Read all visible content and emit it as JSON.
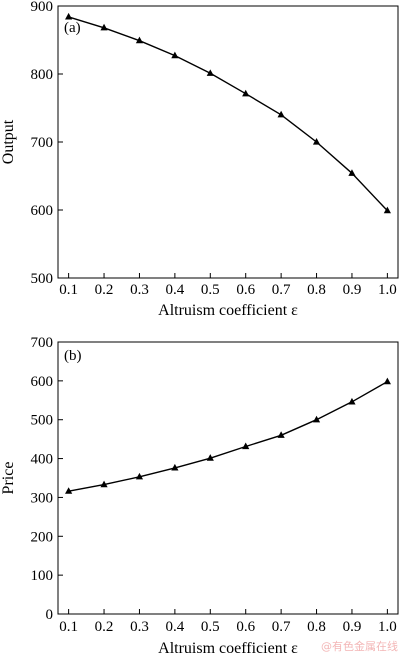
{
  "watermark": "@有色金属在线",
  "chart_data": [
    {
      "type": "line",
      "label": "(a)",
      "xlabel": "Altruism coefficient ε",
      "ylabel": "Output",
      "xlim": [
        0.07,
        1.03
      ],
      "ylim": [
        500,
        900
      ],
      "xticks": [
        "0.1",
        "0.2",
        "0.3",
        "0.4",
        "0.5",
        "0.6",
        "0.7",
        "0.8",
        "0.9",
        "1.0"
      ],
      "yticks": [
        "500",
        "600",
        "700",
        "800",
        "900"
      ],
      "marker": "triangle",
      "x": [
        0.1,
        0.2,
        0.3,
        0.4,
        0.5,
        0.6,
        0.7,
        0.8,
        0.9,
        1.0
      ],
      "y": [
        884,
        868,
        849,
        827,
        801,
        771,
        740,
        700,
        654,
        599
      ]
    },
    {
      "type": "line",
      "label": "(b)",
      "xlabel": "Altruism coefficient ε",
      "ylabel": "Price",
      "xlim": [
        0.07,
        1.03
      ],
      "ylim": [
        0,
        700
      ],
      "xticks": [
        "0.1",
        "0.2",
        "0.3",
        "0.4",
        "0.5",
        "0.6",
        "0.7",
        "0.8",
        "0.9",
        "1.0"
      ],
      "yticks": [
        "0",
        "100",
        "200",
        "300",
        "400",
        "500",
        "600",
        "700"
      ],
      "marker": "triangle",
      "x": [
        0.1,
        0.2,
        0.3,
        0.4,
        0.5,
        0.6,
        0.7,
        0.8,
        0.9,
        1.0
      ],
      "y": [
        316,
        333,
        353,
        376,
        401,
        431,
        460,
        500,
        546,
        598
      ]
    }
  ]
}
